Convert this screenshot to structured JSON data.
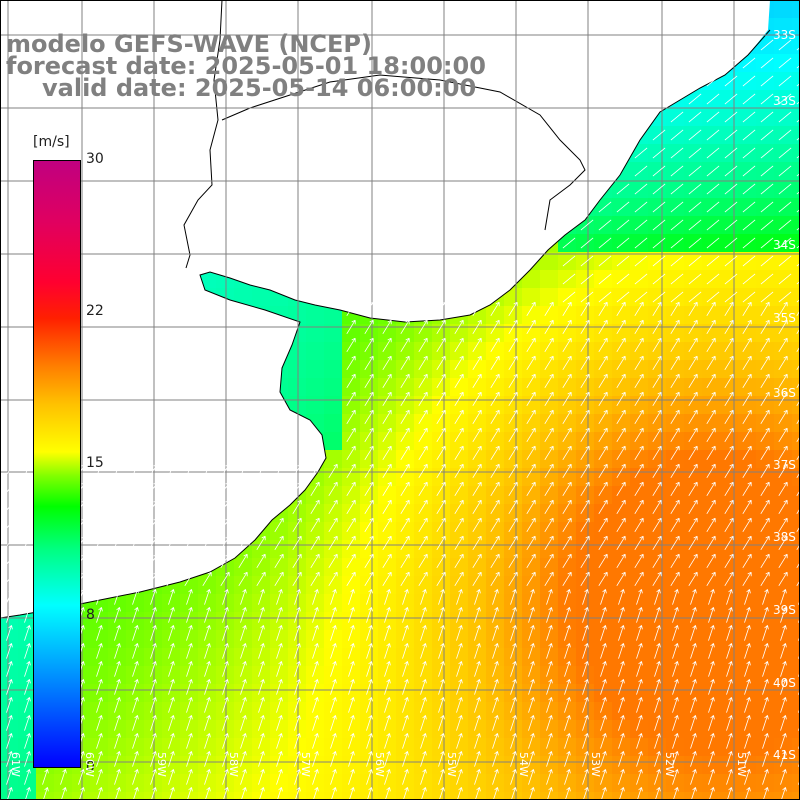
{
  "title": {
    "line1": "modelo GEFS-WAVE (NCEP)",
    "line2": "forecast date: 2025-05-01 18:00:00",
    "line3": "valid date: 2025-05-14 06:00:00"
  },
  "legend": {
    "unit": "[m/s]",
    "ticks": [
      "30",
      "22",
      "15",
      "8",
      "0"
    ],
    "min": 0,
    "max": 30
  },
  "lat_labels": [
    "33S",
    "33S",
    "34S",
    "35S",
    "36S",
    "37S",
    "38S",
    "39S",
    "40S",
    "41S"
  ],
  "lon_labels": [
    "61W",
    "60W",
    "59W",
    "58W",
    "57W",
    "56W",
    "55W",
    "54W",
    "53W",
    "52W",
    "51W"
  ],
  "colors": {
    "land": "#ffffff",
    "coastline": "#000000",
    "grid": "#808080",
    "arrows": "#ffffff",
    "title_text": "#808080"
  }
}
